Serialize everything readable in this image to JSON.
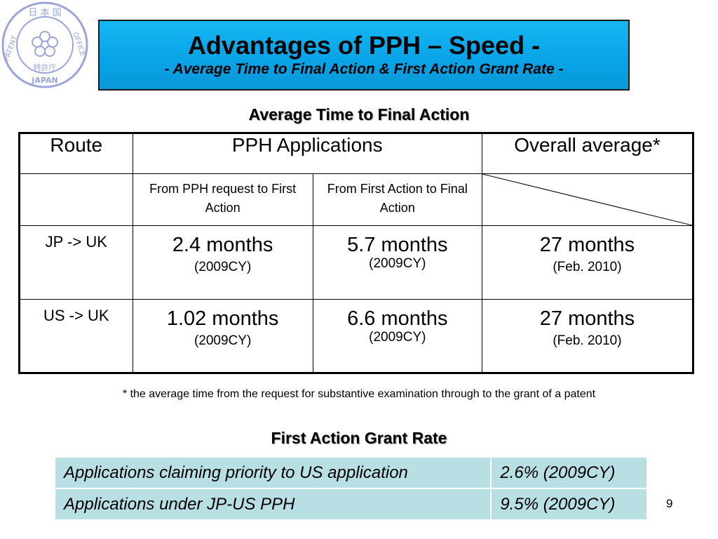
{
  "seal": {
    "icon": "jpo-seal-icon",
    "text_top": "日本国",
    "text_left": "PATENT",
    "text_right": "OFFICE",
    "text_bottom": "JAPAN",
    "text_center": "特許庁"
  },
  "title": {
    "main": "Advantages of PPH – Speed -",
    "sub": "- Average Time to Final Action & First Action Grant Rate -"
  },
  "section1": {
    "heading": "Average Time to Final Action",
    "headers": [
      "Route",
      "PPH Applications",
      "Overall average*"
    ],
    "subheaders": [
      "From PPH request to First Action",
      "From First Action to Final Action"
    ],
    "rows": [
      {
        "route": "JP -> UK",
        "c1_value": "2.4 months",
        "c1_note": "(2009CY)",
        "c2_value": "5.7 months",
        "c2_note": "(2009CY)",
        "c3_value": "27 months",
        "c3_note": "(Feb. 2010)"
      },
      {
        "route": "US -> UK",
        "c1_value": "1.02 months",
        "c1_note": "(2009CY)",
        "c2_value": "6.6 months",
        "c2_note": "(2009CY)",
        "c3_value": "27 months",
        "c3_note": "(Feb. 2010)"
      }
    ],
    "footnote": "* the average time from the request for substantive examination through to the grant of a patent"
  },
  "section2": {
    "heading": "First Action Grant Rate",
    "rows": [
      {
        "label": "Applications claiming priority to US application",
        "value": "2.6% (2009CY)"
      },
      {
        "label": "Applications under JP-US PPH",
        "value": "9.5% (2009CY)"
      }
    ]
  },
  "page_number": "9"
}
